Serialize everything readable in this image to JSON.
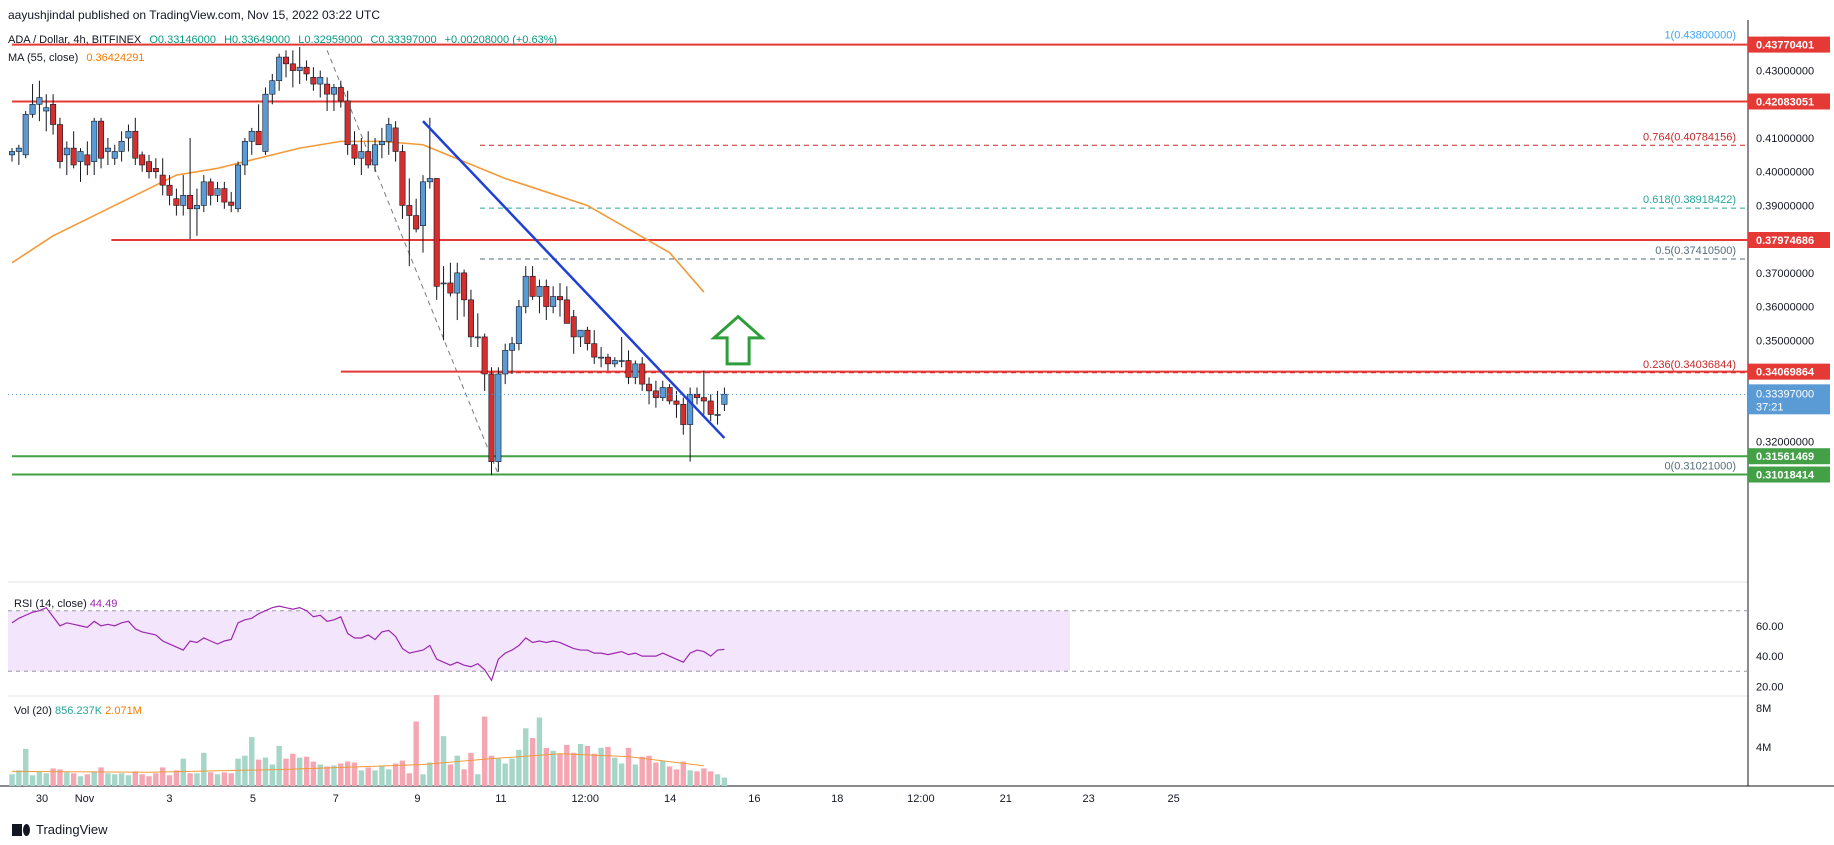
{
  "header": {
    "published": "aayushjindal published on TradingView.com, Nov 15, 2022 03:22 UTC",
    "symbol": "ADA / Dollar, 4h, BITFINEX",
    "open": "O0.33146000",
    "high": "H0.33649000",
    "low": "L0.32959000",
    "close": "C0.33397000",
    "change": "+0.00208000 (+0.63%)",
    "ma_label": "MA (55, close)",
    "ma_value": "0.36424291"
  },
  "indicators": {
    "rsi_label": "RSI (14, close)",
    "rsi_value": "44.49",
    "vol_label": "Vol (20)",
    "vol_value": "856.237K",
    "vol_ma_value": "2.071M"
  },
  "footer": {
    "brand": "TradingView"
  },
  "colors": {
    "up": "#5b9bd5",
    "down": "#d32f2f",
    "ma": "#f29a38",
    "trend": "#1f3fd6",
    "resistance": "#e53935",
    "support": "#43a047",
    "arrow": "#2e9e3a",
    "rsi_band": "#f3e5fb",
    "rsi_line": "#9c27b0",
    "vol_up": "#a5d6c7",
    "vol_down": "#f4a6b2"
  },
  "chart_data": {
    "type": "candlestick",
    "currency": "USD",
    "price_axis": {
      "min": 0.305,
      "max": 0.445,
      "ticks": [
        "0.43000000",
        "0.41000000",
        "0.40000000",
        "0.39000000",
        "0.37000000",
        "0.36000000",
        "0.35000000",
        "0.32000000"
      ],
      "tick_values": [
        0.43,
        0.41,
        0.4,
        0.39,
        0.37,
        0.36,
        0.35,
        0.32
      ]
    },
    "x_axis": {
      "labels": [
        "30",
        "Nov",
        "3",
        "5",
        "7",
        "9",
        "11",
        "12:00",
        "14",
        "16",
        "18",
        "12:00",
        "21",
        "23",
        "25"
      ],
      "label_pos": [
        0,
        6.2,
        18.6,
        30.8,
        42.9,
        54.8,
        67.0,
        79.3,
        91.7,
        104.0,
        116.1,
        128.3,
        140.7,
        152.8,
        165.2
      ]
    },
    "candles": [
      [
        0.405,
        0.407,
        0.403,
        0.406
      ],
      [
        0.406,
        0.408,
        0.402,
        0.407
      ],
      [
        0.405,
        0.418,
        0.404,
        0.417
      ],
      [
        0.417,
        0.426,
        0.416,
        0.42
      ],
      [
        0.42,
        0.427,
        0.415,
        0.422
      ],
      [
        0.418,
        0.423,
        0.412,
        0.419
      ],
      [
        0.42,
        0.423,
        0.411,
        0.414
      ],
      [
        0.414,
        0.416,
        0.401,
        0.403
      ],
      [
        0.405,
        0.409,
        0.399,
        0.407
      ],
      [
        0.407,
        0.412,
        0.401,
        0.402
      ],
      [
        0.403,
        0.407,
        0.397,
        0.406
      ],
      [
        0.405,
        0.409,
        0.399,
        0.402
      ],
      [
        0.403,
        0.416,
        0.399,
        0.415
      ],
      [
        0.415,
        0.416,
        0.401,
        0.404
      ],
      [
        0.406,
        0.41,
        0.402,
        0.407
      ],
      [
        0.404,
        0.408,
        0.402,
        0.406
      ],
      [
        0.406,
        0.412,
        0.403,
        0.409
      ],
      [
        0.41,
        0.414,
        0.406,
        0.412
      ],
      [
        0.412,
        0.416,
        0.402,
        0.404
      ],
      [
        0.405,
        0.406,
        0.4,
        0.402
      ],
      [
        0.403,
        0.405,
        0.398,
        0.4
      ],
      [
        0.401,
        0.404,
        0.398,
        0.4
      ],
      [
        0.399,
        0.404,
        0.393,
        0.396
      ],
      [
        0.396,
        0.399,
        0.39,
        0.393
      ],
      [
        0.392,
        0.395,
        0.387,
        0.39
      ],
      [
        0.39,
        0.399,
        0.387,
        0.393
      ],
      [
        0.393,
        0.41,
        0.38,
        0.389
      ],
      [
        0.389,
        0.395,
        0.381,
        0.39
      ],
      [
        0.39,
        0.399,
        0.388,
        0.397
      ],
      [
        0.397,
        0.398,
        0.39,
        0.393
      ],
      [
        0.393,
        0.397,
        0.391,
        0.395
      ],
      [
        0.395,
        0.397,
        0.389,
        0.391
      ],
      [
        0.391,
        0.394,
        0.388,
        0.39
      ],
      [
        0.389,
        0.403,
        0.388,
        0.402
      ],
      [
        0.402,
        0.41,
        0.399,
        0.409
      ],
      [
        0.409,
        0.413,
        0.405,
        0.412
      ],
      [
        0.412,
        0.42,
        0.408,
        0.408
      ],
      [
        0.406,
        0.425,
        0.405,
        0.423
      ],
      [
        0.423,
        0.429,
        0.42,
        0.427
      ],
      [
        0.427,
        0.435,
        0.424,
        0.434
      ],
      [
        0.434,
        0.436,
        0.428,
        0.432
      ],
      [
        0.432,
        0.436,
        0.425,
        0.43
      ],
      [
        0.43,
        0.437,
        0.426,
        0.431
      ],
      [
        0.431,
        0.433,
        0.427,
        0.429
      ],
      [
        0.428,
        0.431,
        0.424,
        0.426
      ],
      [
        0.426,
        0.43,
        0.422,
        0.428
      ],
      [
        0.426,
        0.428,
        0.418,
        0.423
      ],
      [
        0.423,
        0.426,
        0.418,
        0.425
      ],
      [
        0.425,
        0.427,
        0.419,
        0.421
      ],
      [
        0.421,
        0.424,
        0.405,
        0.408
      ],
      [
        0.408,
        0.412,
        0.402,
        0.404
      ],
      [
        0.404,
        0.41,
        0.399,
        0.406
      ],
      [
        0.406,
        0.412,
        0.401,
        0.402
      ],
      [
        0.402,
        0.41,
        0.4,
        0.408
      ],
      [
        0.408,
        0.413,
        0.404,
        0.409
      ],
      [
        0.409,
        0.416,
        0.405,
        0.414
      ],
      [
        0.413,
        0.415,
        0.403,
        0.406
      ],
      [
        0.406,
        0.408,
        0.386,
        0.39
      ],
      [
        0.39,
        0.398,
        0.372,
        0.387
      ],
      [
        0.387,
        0.392,
        0.382,
        0.383
      ],
      [
        0.384,
        0.399,
        0.376,
        0.397
      ],
      [
        0.397,
        0.416,
        0.395,
        0.398
      ],
      [
        0.398,
        0.398,
        0.362,
        0.366
      ],
      [
        0.367,
        0.372,
        0.35,
        0.367
      ],
      [
        0.367,
        0.373,
        0.363,
        0.364
      ],
      [
        0.364,
        0.373,
        0.356,
        0.37
      ],
      [
        0.37,
        0.371,
        0.357,
        0.362
      ],
      [
        0.362,
        0.365,
        0.348,
        0.351
      ],
      [
        0.351,
        0.358,
        0.348,
        0.351
      ],
      [
        0.351,
        0.352,
        0.335,
        0.34
      ],
      [
        0.34,
        0.342,
        0.31,
        0.314
      ],
      [
        0.314,
        0.342,
        0.311,
        0.34
      ],
      [
        0.34,
        0.349,
        0.337,
        0.347
      ],
      [
        0.347,
        0.351,
        0.34,
        0.349
      ],
      [
        0.349,
        0.362,
        0.347,
        0.36
      ],
      [
        0.36,
        0.372,
        0.358,
        0.369
      ],
      [
        0.369,
        0.372,
        0.362,
        0.363
      ],
      [
        0.363,
        0.368,
        0.358,
        0.366
      ],
      [
        0.366,
        0.368,
        0.356,
        0.36
      ],
      [
        0.36,
        0.366,
        0.358,
        0.363
      ],
      [
        0.363,
        0.367,
        0.357,
        0.362
      ],
      [
        0.362,
        0.366,
        0.355,
        0.355
      ],
      [
        0.357,
        0.359,
        0.346,
        0.351
      ],
      [
        0.351,
        0.352,
        0.348,
        0.353
      ],
      [
        0.353,
        0.354,
        0.347,
        0.349
      ],
      [
        0.349,
        0.353,
        0.343,
        0.345
      ],
      [
        0.345,
        0.348,
        0.342,
        0.345
      ],
      [
        0.345,
        0.346,
        0.341,
        0.343
      ],
      [
        0.343,
        0.345,
        0.342,
        0.344
      ],
      [
        0.344,
        0.351,
        0.342,
        0.344
      ],
      [
        0.344,
        0.347,
        0.337,
        0.339
      ],
      [
        0.339,
        0.344,
        0.337,
        0.343
      ],
      [
        0.343,
        0.345,
        0.335,
        0.337
      ],
      [
        0.337,
        0.339,
        0.331,
        0.335
      ],
      [
        0.335,
        0.338,
        0.33,
        0.333
      ],
      [
        0.333,
        0.338,
        0.332,
        0.336
      ],
      [
        0.336,
        0.337,
        0.331,
        0.332
      ],
      [
        0.332,
        0.335,
        0.327,
        0.331
      ],
      [
        0.331,
        0.333,
        0.322,
        0.325
      ],
      [
        0.325,
        0.336,
        0.314,
        0.334
      ],
      [
        0.334,
        0.336,
        0.331,
        0.333
      ],
      [
        0.333,
        0.341,
        0.328,
        0.332
      ],
      [
        0.332,
        0.334,
        0.326,
        0.328
      ],
      [
        0.328,
        0.335,
        0.325,
        0.328
      ],
      [
        0.331,
        0.336,
        0.329,
        0.334
      ]
    ],
    "ma55": [
      [
        0,
        0.373
      ],
      [
        6,
        0.381
      ],
      [
        12,
        0.387
      ],
      [
        18,
        0.393
      ],
      [
        24,
        0.399
      ],
      [
        30,
        0.401
      ],
      [
        36,
        0.404
      ],
      [
        42,
        0.407
      ],
      [
        48,
        0.409
      ],
      [
        54,
        0.409
      ],
      [
        60,
        0.408
      ],
      [
        66,
        0.403
      ],
      [
        72,
        0.398
      ],
      [
        78,
        0.394
      ],
      [
        84,
        0.39
      ],
      [
        90,
        0.383
      ],
      [
        96,
        0.376
      ],
      [
        101,
        0.3643
      ]
    ],
    "trendline": [
      [
        60,
        0.415
      ],
      [
        104,
        0.321
      ]
    ],
    "fib_drop_line": [
      [
        46,
        0.436
      ],
      [
        71,
        0.3102
      ]
    ],
    "horizontal_levels": [
      {
        "price": 0.43770401,
        "label": "0.43770401",
        "from": 0,
        "color": "red"
      },
      {
        "price": 0.42083051,
        "label": "0.42083051",
        "from": 0,
        "color": "red"
      },
      {
        "price": 0.37974686,
        "label": "0.37974686",
        "from": 14.5,
        "color": "red"
      },
      {
        "price": 0.34069864,
        "label": "0.34069864",
        "from": 48,
        "color": "red"
      },
      {
        "price": 0.31561469,
        "label": "0.31561469",
        "from": 0,
        "color": "green"
      },
      {
        "price": 0.31018414,
        "label": "0.31018414",
        "from": 0,
        "color": "green"
      }
    ],
    "fib_levels": [
      {
        "ratio": "1",
        "price": 0.438,
        "text": "1(0.43800000)",
        "color": "#42a5f5"
      },
      {
        "ratio": "0.764",
        "price": 0.40784156,
        "text": "0.764(0.40784156)",
        "color": "#c62828"
      },
      {
        "ratio": "0.618",
        "price": 0.38918422,
        "text": "0.618(0.38918422)",
        "color": "#26a69a"
      },
      {
        "ratio": "0.5",
        "price": 0.374105,
        "text": "0.5(0.37410500)",
        "color": "#546e7a"
      },
      {
        "ratio": "0.236",
        "price": 0.34036844,
        "text": "0.236(0.34036844)",
        "color": "#c62828"
      },
      {
        "ratio": "0",
        "price": 0.31021,
        "text": "0(0.31021000)",
        "color": "#546e7a"
      }
    ],
    "current_price": {
      "value": 0.33397,
      "label": "0.33397000",
      "countdown": "37:21"
    },
    "arrow": {
      "x": 106,
      "y_from": 0.343,
      "y_to": 0.357,
      "direction": "up"
    },
    "rsi": {
      "min": 15,
      "max": 85,
      "upper": 70,
      "lower": 30,
      "ticks": [
        "60.00",
        "40.00",
        "20.00"
      ],
      "tick_values": [
        60,
        40,
        20
      ],
      "values": [
        62,
        65,
        67,
        69,
        70,
        72,
        66,
        60,
        62,
        61,
        60,
        59,
        63,
        60,
        61,
        60,
        62,
        63,
        58,
        56,
        55,
        54,
        50,
        48,
        46,
        44,
        50,
        49,
        52,
        50,
        48,
        50,
        51,
        62,
        64,
        65,
        68,
        70,
        72,
        73,
        72,
        71,
        72,
        70,
        66,
        67,
        63,
        64,
        66,
        55,
        52,
        52,
        54,
        51,
        56,
        57,
        53,
        45,
        42,
        43,
        44,
        47,
        38,
        36,
        34,
        36,
        34,
        33,
        35,
        31,
        24,
        38,
        42,
        44,
        47,
        52,
        49,
        50,
        49,
        50,
        49,
        47,
        45,
        44,
        44,
        42,
        42,
        41,
        42,
        43,
        41,
        42,
        40,
        40,
        40,
        42,
        40,
        38,
        36,
        42,
        44,
        43,
        40,
        44,
        44.49
      ]
    },
    "volume": {
      "max": 9.0,
      "ticks": [
        "8M",
        "4M"
      ],
      "tick_values": [
        8,
        4
      ],
      "values": [
        1.2,
        1.6,
        3.8,
        1.1,
        1.5,
        1.3,
        1.8,
        1.7,
        1.4,
        1.3,
        1.0,
        1.2,
        1.5,
        1.9,
        1.3,
        1.2,
        1.3,
        1.1,
        1.5,
        1.2,
        1.0,
        1.3,
        1.9,
        1.1,
        1.6,
        2.8,
        1.3,
        1.3,
        3.4,
        1.4,
        1.2,
        1.4,
        1.3,
        2.8,
        3.1,
        5.0,
        2.7,
        2.9,
        2.2,
        4.1,
        2.8,
        3.3,
        2.9,
        3.0,
        2.5,
        2.2,
        2.0,
        2.1,
        2.3,
        2.5,
        2.4,
        1.6,
        1.9,
        1.6,
        2.1,
        1.7,
        2.3,
        2.6,
        1.3,
        6.6,
        1.2,
        2.4,
        9.3,
        5.1,
        2.2,
        3.1,
        1.7,
        3.4,
        1.2,
        7.1,
        3.1,
        2.8,
        2.3,
        2.8,
        3.7,
        5.9,
        4.9,
        7.0,
        3.9,
        3.6,
        3.3,
        4.2,
        3.4,
        4.3,
        4.1,
        3.3,
        3.9,
        4.0,
        2.9,
        2.3,
        3.9,
        2.2,
        3.0,
        3.1,
        2.4,
        2.6,
        2.0,
        1.7,
        2.5,
        1.6,
        1.5,
        1.8,
        1.5,
        1.2,
        0.86
      ],
      "ma": [
        [
          0,
          1.5
        ],
        [
          20,
          1.4
        ],
        [
          40,
          1.7
        ],
        [
          60,
          2.2
        ],
        [
          70,
          2.8
        ],
        [
          80,
          3.3
        ],
        [
          90,
          3.0
        ],
        [
          101,
          2.07
        ]
      ]
    }
  }
}
